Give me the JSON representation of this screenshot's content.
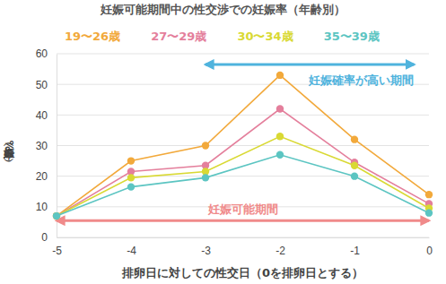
{
  "chart_data": {
    "type": "line",
    "title": "妊娠可能期間中の性交渉での妊娠率（年齢別）",
    "x_label": "排卵日に対しての性交日（0を排卵日とする）",
    "y_label": "妊娠率（%）",
    "x": [
      -5,
      -4,
      -3,
      -2,
      -1,
      0
    ],
    "series": [
      {
        "name": "19〜26歳",
        "color": "#f2a93b",
        "values": [
          7,
          25,
          30,
          53,
          32,
          14
        ]
      },
      {
        "name": "27〜29歳",
        "color": "#e47f9c",
        "values": [
          7,
          21.5,
          23.5,
          42,
          24.5,
          11
        ]
      },
      {
        "name": "30〜34歳",
        "color": "#d9d934",
        "values": [
          7,
          19.5,
          21.5,
          33,
          23.5,
          9.5
        ]
      },
      {
        "name": "35〜39歳",
        "color": "#5cc5c2",
        "values": [
          7,
          16.5,
          19.5,
          27,
          20,
          8
        ]
      }
    ],
    "xlim": [
      -5,
      0
    ],
    "xticks": [
      -5,
      -4,
      -3,
      -2,
      -1,
      0
    ],
    "ylim": [
      0,
      60
    ],
    "yticks": [
      0,
      10,
      20,
      30,
      40,
      50,
      60
    ],
    "grid": true,
    "legend": "top",
    "marker": "circle",
    "annotations": [
      {
        "text": "妊娠確率が高い期間",
        "x": [
          -3,
          -0.2
        ],
        "y": 56.5,
        "color": "#4fb3dd"
      },
      {
        "text": "妊娠可能期間",
        "x": [
          -5,
          0
        ],
        "y": 5.5,
        "color": "#f08a8a"
      }
    ]
  }
}
